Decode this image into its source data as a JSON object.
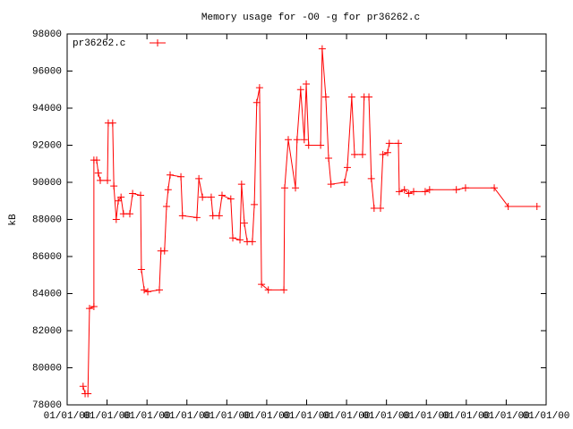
{
  "chart_data": {
    "type": "line",
    "title": "Memory usage for -O0 -g for pr36262.c",
    "ylabel": "kB",
    "legend": "top-left",
    "grid": false,
    "xlim": [
      0,
      12
    ],
    "xticks": [
      {
        "value": 0,
        "label": "01/01/00"
      },
      {
        "value": 1,
        "label": "01/01/00"
      },
      {
        "value": 2,
        "label": "01/01/00"
      },
      {
        "value": 3,
        "label": "01/01/00"
      },
      {
        "value": 4,
        "label": "01/01/00"
      },
      {
        "value": 5,
        "label": "01/01/00"
      },
      {
        "value": 6,
        "label": "01/01/00"
      },
      {
        "value": 7,
        "label": "01/01/00"
      },
      {
        "value": 8,
        "label": "01/01/00"
      },
      {
        "value": 9,
        "label": "01/01/00"
      },
      {
        "value": 10,
        "label": "01/01/00"
      },
      {
        "value": 11,
        "label": "01/01/00"
      },
      {
        "value": 12,
        "label": "01/01/00"
      }
    ],
    "ylim": [
      78000,
      98000
    ],
    "yticks": [
      78000,
      80000,
      82000,
      84000,
      86000,
      88000,
      90000,
      92000,
      94000,
      96000,
      98000
    ],
    "x": [
      0.4,
      0.45,
      0.52,
      0.56,
      0.67,
      0.67,
      0.74,
      0.78,
      0.83,
      1.01,
      1.03,
      1.14,
      1.17,
      1.23,
      1.28,
      1.35,
      1.41,
      1.57,
      1.64,
      1.84,
      1.86,
      1.93,
      2.02,
      2.31,
      2.35,
      2.44,
      2.49,
      2.53,
      2.58,
      2.85,
      2.89,
      3.25,
      3.3,
      3.39,
      3.61,
      3.65,
      3.81,
      3.88,
      4.1,
      4.15,
      4.33,
      4.37,
      4.44,
      4.51,
      4.64,
      4.69,
      4.75,
      4.82,
      4.87,
      5.04,
      5.43,
      5.45,
      5.54,
      5.72,
      5.76,
      5.85,
      5.94,
      5.99,
      6.05,
      6.35,
      6.39,
      6.48,
      6.55,
      6.61,
      6.95,
      7.02,
      7.13,
      7.2,
      7.4,
      7.44,
      7.56,
      7.62,
      7.69,
      7.85,
      7.91,
      8.03,
      8.07,
      8.3,
      8.32,
      8.45,
      8.56,
      8.68,
      8.97,
      9.08,
      9.75,
      9.98,
      10.7,
      11.05,
      11.77
    ],
    "series": [
      {
        "name": "pr36262.c",
        "color": "#ff0000",
        "values": [
          79000,
          78600,
          78600,
          83200,
          83300,
          91200,
          91200,
          90500,
          90100,
          90100,
          93200,
          93200,
          89800,
          88000,
          89000,
          89200,
          88300,
          88300,
          89400,
          89300,
          85300,
          84200,
          84100,
          84200,
          86300,
          86300,
          88700,
          89600,
          90400,
          90300,
          88200,
          88100,
          90200,
          89200,
          89200,
          88200,
          88200,
          89300,
          89100,
          87000,
          86900,
          89900,
          87800,
          86800,
          86800,
          88800,
          94300,
          95100,
          84500,
          84200,
          84200,
          89700,
          92300,
          89700,
          92300,
          95000,
          92300,
          95300,
          92000,
          92000,
          97200,
          94600,
          91300,
          89900,
          90000,
          90800,
          94600,
          91500,
          91500,
          94600,
          94600,
          90200,
          88600,
          88600,
          91500,
          91600,
          92100,
          92100,
          89500,
          89600,
          89400,
          89500,
          89500,
          89600,
          89600,
          89700,
          89700,
          88700,
          88700
        ]
      }
    ]
  }
}
